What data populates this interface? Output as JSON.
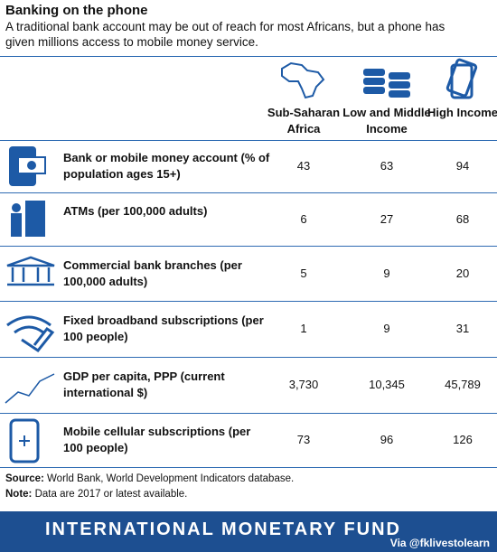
{
  "header": {
    "title": "Banking on the phone",
    "subtitle": "A traditional bank account may be out of reach for most Africans, but a phone has given millions access to mobile money service."
  },
  "table": {
    "columns": [
      "Sub-Saharan Africa",
      "Low and Middle Income",
      "High Income"
    ],
    "rows": [
      [
        "Bank or mobile money account (% of population ages 15+)",
        "43",
        "63",
        "94"
      ],
      [
        "ATMs (per 100,000 adults)",
        "6",
        "27",
        "68"
      ],
      [
        "Commercial bank branches (per 100,000 adults)",
        "5",
        "9",
        "20"
      ],
      [
        "Fixed broadband subscriptions (per 100 people)",
        "1",
        "9",
        "31"
      ],
      [
        "GDP per capita, PPP (current international $)",
        "3,730",
        "10,345",
        "45,789"
      ],
      [
        "Mobile cellular subscriptions (per 100 people)",
        "73",
        "96",
        "126"
      ]
    ]
  },
  "footer": {
    "source_label": "Source:",
    "source": "World Bank, World Development Indicators database.",
    "note_label": "Note:",
    "note": "Data are 2017 or latest available."
  },
  "banner": {
    "organization": "INTERNATIONAL MONETARY FUND",
    "credit": "Via @fklivestolearn"
  }
}
